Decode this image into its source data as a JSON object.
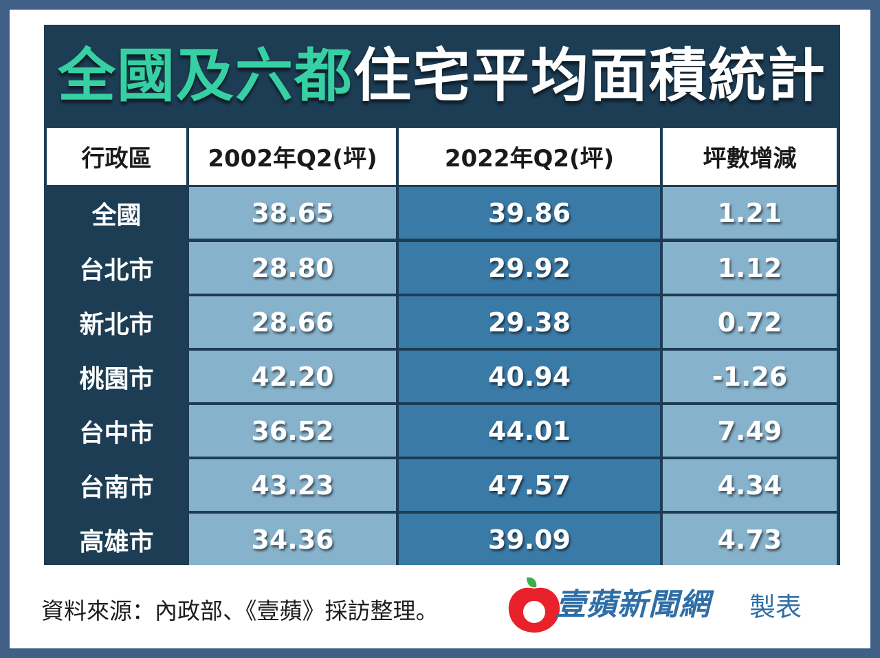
{
  "title": {
    "part1": "全國及六都",
    "part2": "住宅平均面積統計"
  },
  "chart_data": {
    "type": "table",
    "columns": [
      "行政區",
      "2002年Q2(坪)",
      "2022年Q2(坪)",
      "坪數增減"
    ],
    "rows": [
      [
        "全國",
        "38.65",
        "39.86",
        "1.21"
      ],
      [
        "台北市",
        "28.80",
        "29.92",
        "1.12"
      ],
      [
        "新北市",
        "28.66",
        "29.38",
        "0.72"
      ],
      [
        "桃園市",
        "42.20",
        "40.94",
        "-1.26"
      ],
      [
        "台中市",
        "36.52",
        "44.01",
        "7.49"
      ],
      [
        "台南市",
        "43.23",
        "47.57",
        "4.34"
      ],
      [
        "高雄市",
        "34.36",
        "39.09",
        "4.73"
      ]
    ]
  },
  "footer": {
    "source": "資料來源：內政部、《壹蘋》採訪整理。",
    "brand": "壹蘋新聞網",
    "brand_suffix": "製表"
  },
  "colors": {
    "background": "#3f5f86",
    "panel": "#1d3d55",
    "title_accent": "#36d0a3",
    "cell_light": "#87b2cc",
    "cell_dark": "#3a7aa6",
    "brand": "#2f6ea6",
    "logo_red": "#e8212a",
    "logo_green": "#3cae4a"
  },
  "logo_icon": "apple-logo-icon"
}
